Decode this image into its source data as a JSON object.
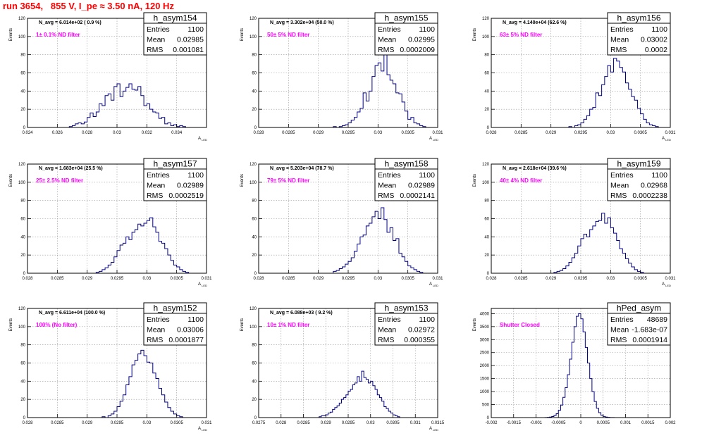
{
  "page": {
    "title": "run 3654,   855 V, I_pe ≈ 3.50 nA, 120 Hz"
  },
  "chart_data": [
    {
      "type": "histogram",
      "hist_name": "h_asym154",
      "nav_text": "N_avg = 6.014e+02 ( 0.9 %)",
      "filter_label": "1± 0.1% ND filter",
      "stats": {
        "Entries": "1100",
        "Mean": "0.02985",
        "RMS": "0.001081"
      },
      "ylabel": "Events",
      "xlabel": "A_LED",
      "xlim": [
        0.024,
        0.036
      ],
      "ylim": [
        0,
        120
      ],
      "xticks": [
        "0.024",
        "0.026",
        "0.028",
        "0.03",
        "0.032",
        "0.034"
      ],
      "yticks": [
        "0",
        "20",
        "40",
        "60",
        "80",
        "100",
        "120"
      ],
      "grid": true,
      "x_start": 0.0268,
      "bin_width": 0.0002,
      "values": [
        1,
        2,
        4,
        5,
        4,
        6,
        11,
        16,
        12,
        17,
        26,
        24,
        35,
        37,
        30,
        45,
        48,
        34,
        40,
        44,
        48,
        42,
        41,
        45,
        35,
        24,
        26,
        20,
        17,
        16,
        10,
        11,
        4,
        5,
        2,
        3,
        1,
        2,
        1
      ]
    },
    {
      "type": "histogram",
      "hist_name": "h_asym155",
      "nav_text": "N_avg = 3.302e+04 (50.0 %)",
      "filter_label": "50± 5% ND filter",
      "stats": {
        "Entries": "1100",
        "Mean": "0.02995",
        "RMS": "0.0002009"
      },
      "ylabel": "Events",
      "xlabel": "A_LED",
      "xlim": [
        0.028,
        0.031
      ],
      "ylim": [
        0,
        120
      ],
      "xticks": [
        "0.028",
        "0.0285",
        "0.029",
        "0.0295",
        "0.03",
        "0.0305",
        "0.031"
      ],
      "yticks": [
        "0",
        "20",
        "40",
        "60",
        "80",
        "100",
        "120"
      ],
      "grid": true,
      "x_start": 0.02925,
      "bin_width": 5e-05,
      "values": [
        1,
        0,
        1,
        2,
        3,
        5,
        8,
        11,
        17,
        21,
        38,
        29,
        40,
        56,
        68,
        71,
        62,
        86,
        58,
        52,
        48,
        38,
        37,
        28,
        18,
        9,
        11,
        5,
        4,
        2,
        1
      ]
    },
    {
      "type": "histogram",
      "hist_name": "h_asym156",
      "nav_text": "N_avg = 4.140e+04 (62.6 %)",
      "filter_label": "63± 5% ND filter",
      "stats": {
        "Entries": "1100",
        "Mean": "0.03002",
        "RMS": "0.0002"
      },
      "ylabel": "Events",
      "xlabel": "A_LED",
      "xlim": [
        0.028,
        0.031
      ],
      "ylim": [
        0,
        120
      ],
      "xticks": [
        "0.028",
        "0.0285",
        "0.029",
        "0.0295",
        "0.03",
        "0.0305",
        "0.031"
      ],
      "yticks": [
        "0",
        "20",
        "40",
        "60",
        "80",
        "100",
        "120"
      ],
      "grid": true,
      "x_start": 0.0293,
      "bin_width": 5e-05,
      "values": [
        1,
        0,
        2,
        3,
        5,
        9,
        13,
        20,
        22,
        38,
        35,
        47,
        56,
        68,
        61,
        76,
        73,
        66,
        61,
        49,
        42,
        34,
        30,
        21,
        15,
        9,
        5,
        3,
        2,
        1
      ]
    },
    {
      "type": "histogram",
      "hist_name": "h_asym157",
      "nav_text": "N_avg = 1.683e+04 (25.5 %)",
      "filter_label": "25± 2.5% ND filter",
      "stats": {
        "Entries": "1100",
        "Mean": "0.02989",
        "RMS": "0.0002519"
      },
      "ylabel": "Events",
      "xlabel": "A_LED",
      "xlim": [
        0.028,
        0.031
      ],
      "ylim": [
        0,
        120
      ],
      "xticks": [
        "0.028",
        "0.0285",
        "0.029",
        "0.0295",
        "0.03",
        "0.0305",
        "0.031"
      ],
      "yticks": [
        "0",
        "20",
        "40",
        "60",
        "80",
        "100",
        "120"
      ],
      "grid": true,
      "x_start": 0.02915,
      "bin_width": 5e-05,
      "values": [
        1,
        2,
        4,
        6,
        9,
        12,
        18,
        25,
        31,
        33,
        40,
        37,
        45,
        48,
        54,
        52,
        55,
        58,
        61,
        51,
        45,
        35,
        33,
        27,
        20,
        14,
        9,
        7,
        4,
        2,
        1
      ]
    },
    {
      "type": "histogram",
      "hist_name": "h_asym158",
      "nav_text": "N_avg = 5.203e+04 (78.7 %)",
      "filter_label": "79± 5% ND filter",
      "stats": {
        "Entries": "1100",
        "Mean": "0.02989",
        "RMS": "0.0002141"
      },
      "ylabel": "Events",
      "xlabel": "A_LED",
      "xlim": [
        0.028,
        0.031
      ],
      "ylim": [
        0,
        120
      ],
      "xticks": [
        "0.028",
        "0.0285",
        "0.029",
        "0.0295",
        "0.03",
        "0.0305",
        "0.031"
      ],
      "yticks": [
        "0",
        "20",
        "40",
        "60",
        "80",
        "100",
        "120"
      ],
      "grid": true,
      "x_start": 0.02925,
      "bin_width": 5e-05,
      "values": [
        2,
        3,
        5,
        7,
        10,
        13,
        17,
        24,
        32,
        40,
        42,
        52,
        55,
        62,
        68,
        60,
        72,
        59,
        45,
        50,
        36,
        38,
        22,
        18,
        13,
        8,
        6,
        4,
        2,
        1
      ]
    },
    {
      "type": "histogram",
      "hist_name": "h_asym159",
      "nav_text": "N_avg = 2.618e+04 (39.6 %)",
      "filter_label": "40± 4% ND filter",
      "stats": {
        "Entries": "1100",
        "Mean": "0.02968",
        "RMS": "0.0002238"
      },
      "ylabel": "Events",
      "xlabel": "A_LED",
      "xlim": [
        0.028,
        0.031
      ],
      "ylim": [
        0,
        120
      ],
      "xticks": [
        "0.028",
        "0.0285",
        "0.029",
        "0.0295",
        "0.03",
        "0.0305",
        "0.031"
      ],
      "yticks": [
        "0",
        "20",
        "40",
        "60",
        "80",
        "100",
        "120"
      ],
      "grid": true,
      "x_start": 0.02905,
      "bin_width": 5e-05,
      "values": [
        1,
        2,
        3,
        5,
        8,
        12,
        17,
        22,
        30,
        38,
        43,
        40,
        48,
        52,
        57,
        58,
        66,
        55,
        61,
        50,
        44,
        36,
        27,
        22,
        16,
        11,
        7,
        4,
        2,
        1
      ]
    },
    {
      "type": "histogram",
      "hist_name": "h_asym152",
      "nav_text": "N_avg = 6.611e+04 (100.0 %)",
      "filter_label": "100% (No filter)",
      "stats": {
        "Entries": "1100",
        "Mean": "0.03006",
        "RMS": "0.0001877"
      },
      "ylabel": "Events",
      "xlabel": "A_LED",
      "xlim": [
        0.028,
        0.031
      ],
      "ylim": [
        0,
        120
      ],
      "xticks": [
        "0.028",
        "0.0285",
        "0.029",
        "0.0295",
        "0.03",
        "0.0305",
        "0.031"
      ],
      "yticks": [
        "0",
        "20",
        "40",
        "60",
        "80",
        "100",
        "120"
      ],
      "grid": true,
      "x_start": 0.02925,
      "bin_width": 5e-05,
      "values": [
        1,
        0,
        2,
        4,
        7,
        12,
        18,
        25,
        36,
        45,
        58,
        63,
        70,
        74,
        68,
        61,
        60,
        49,
        43,
        32,
        25,
        17,
        11,
        7,
        4,
        2,
        1
      ]
    },
    {
      "type": "histogram",
      "hist_name": "h_asym153",
      "nav_text": "N_avg = 6.088e+03 ( 9.2 %)",
      "filter_label": "10± 1% ND filter",
      "stats": {
        "Entries": "1100",
        "Mean": "0.02972",
        "RMS": "0.000355"
      },
      "ylabel": "Events",
      "xlabel": "A_LED",
      "xlim": [
        0.0275,
        0.0315
      ],
      "ylim": [
        0,
        120
      ],
      "xticks": [
        "0.0275",
        "0.028",
        "0.0285",
        "0.029",
        "0.0295",
        "0.03",
        "0.0305",
        "0.031",
        "0.0315"
      ],
      "yticks": [
        "0",
        "20",
        "40",
        "60",
        "80",
        "100",
        "120"
      ],
      "grid": true,
      "x_start": 0.02885,
      "bin_width": 5e-05,
      "values": [
        1,
        2,
        2,
        3,
        5,
        6,
        9,
        11,
        13,
        16,
        20,
        22,
        25,
        29,
        31,
        36,
        38,
        45,
        40,
        51,
        44,
        42,
        38,
        40,
        35,
        31,
        25,
        22,
        18,
        12,
        10,
        7,
        5,
        3,
        2,
        1
      ]
    },
    {
      "type": "histogram",
      "hist_name": "hPed_asym",
      "nav_text": "",
      "filter_label": "Shutter Closed",
      "stats": {
        "Entries": "48689",
        "Mean": "-1.683e-07",
        "RMS": "0.0001914"
      },
      "ylabel": "Events",
      "xlabel": "",
      "xlim": [
        -0.002,
        0.002
      ],
      "ylim": [
        0,
        4200
      ],
      "xticks": [
        "-0.002",
        "-0.0015",
        "-0.001",
        "-0.0005",
        "0",
        "0.0005",
        "0.001",
        "0.0015",
        "0.002"
      ],
      "yticks": [
        "0",
        "500",
        "1000",
        "1500",
        "2000",
        "2500",
        "3000",
        "3500",
        "4000"
      ],
      "grid": true,
      "x_start": -0.0008,
      "bin_width": 5e-05,
      "values": [
        5,
        10,
        20,
        40,
        80,
        150,
        280,
        480,
        780,
        1150,
        1650,
        2250,
        2900,
        3500,
        3900,
        4000,
        3800,
        3300,
        2700,
        2100,
        1500,
        1000,
        620,
        360,
        190,
        90,
        45,
        20,
        10,
        5,
        2,
        1
      ]
    }
  ]
}
